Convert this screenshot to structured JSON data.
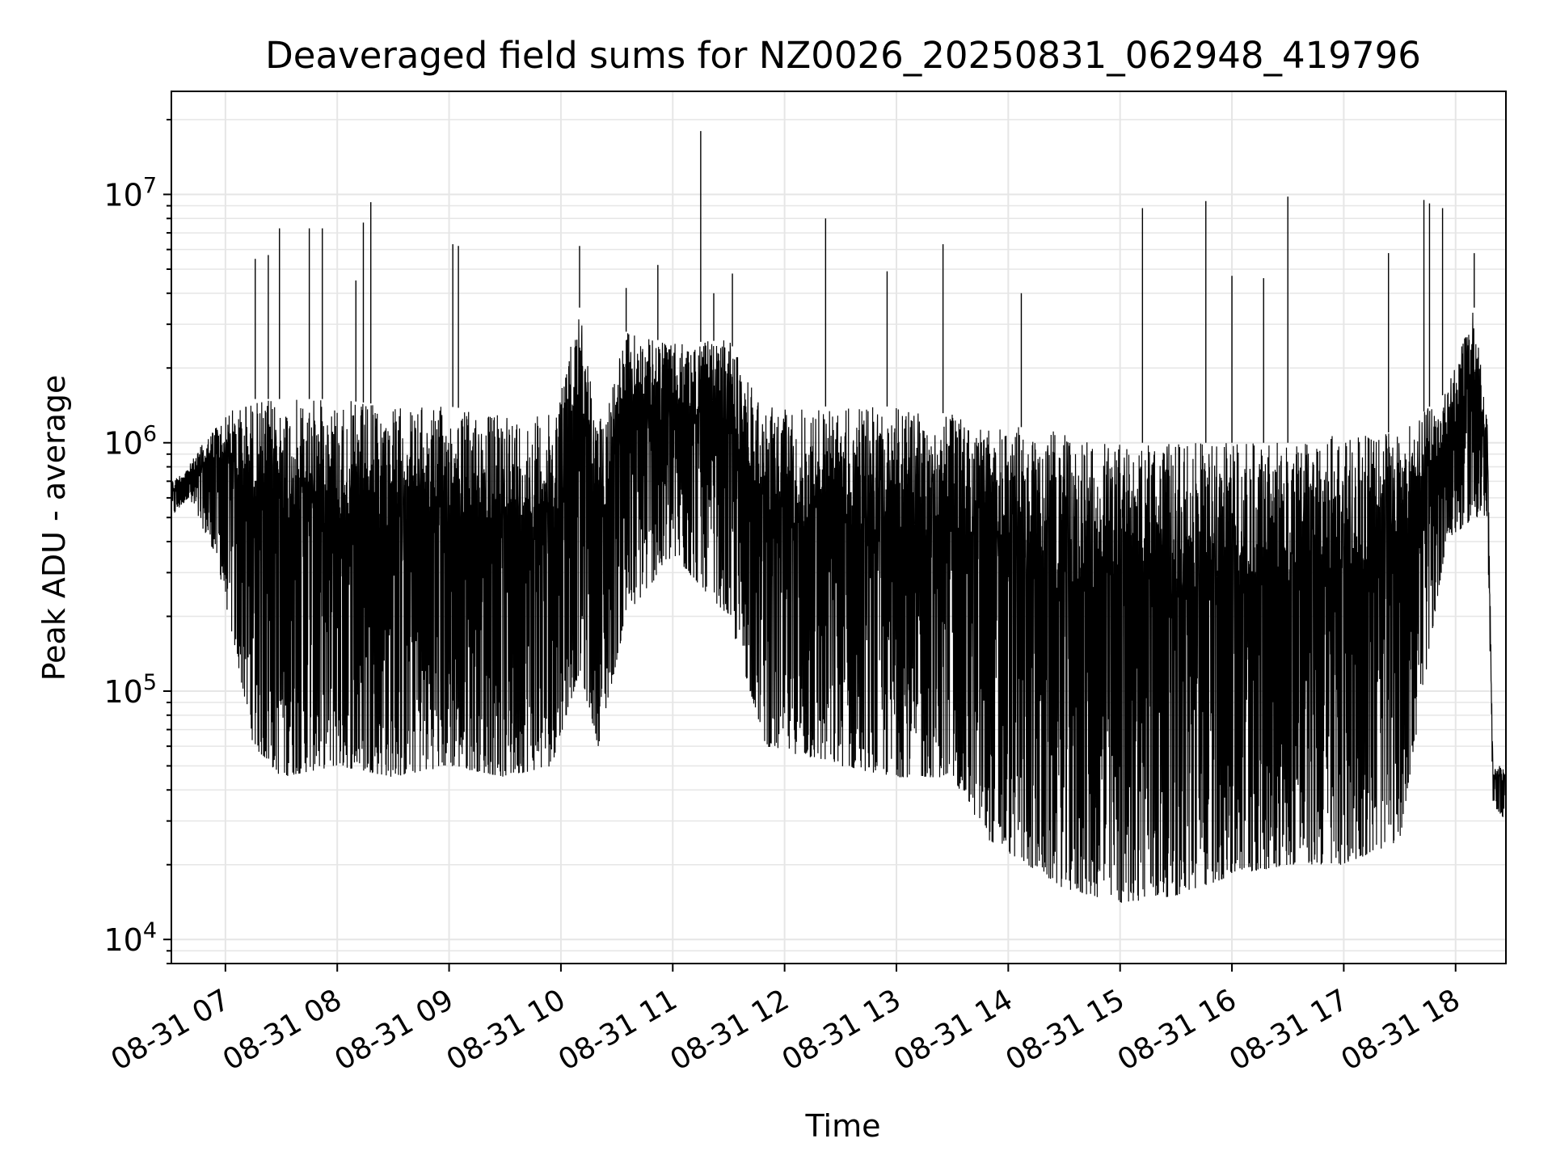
{
  "chart_data": {
    "type": "line",
    "title": "Deaveraged field sums for NZ0026_20250831_062948_419796",
    "xlabel": "Time",
    "ylabel": "Peak ADU - average",
    "yscale": "log",
    "ylim": [
      8000,
      26000000
    ],
    "xlim": [
      "08-31 06:31",
      "08-31 18:27"
    ],
    "grid": true,
    "legend": "none",
    "colors": {
      "line": "#000000",
      "grid": "#e6e6e6",
      "axes": "#000000",
      "background": "#ffffff"
    },
    "x_ticks": [
      {
        "t": "08-31 07:00",
        "label": "08-31 07"
      },
      {
        "t": "08-31 08:00",
        "label": "08-31 08"
      },
      {
        "t": "08-31 09:00",
        "label": "08-31 09"
      },
      {
        "t": "08-31 10:00",
        "label": "08-31 10"
      },
      {
        "t": "08-31 11:00",
        "label": "08-31 11"
      },
      {
        "t": "08-31 12:00",
        "label": "08-31 12"
      },
      {
        "t": "08-31 13:00",
        "label": "08-31 13"
      },
      {
        "t": "08-31 14:00",
        "label": "08-31 14"
      },
      {
        "t": "08-31 15:00",
        "label": "08-31 15"
      },
      {
        "t": "08-31 16:00",
        "label": "08-31 16"
      },
      {
        "t": "08-31 17:00",
        "label": "08-31 17"
      },
      {
        "t": "08-31 18:00",
        "label": "08-31 18"
      }
    ],
    "y_ticks": [
      {
        "value": 10000,
        "base": "10",
        "exp": "4"
      },
      {
        "value": 100000,
        "base": "10",
        "exp": "5"
      },
      {
        "value": 1000000,
        "base": "10",
        "exp": "6"
      },
      {
        "value": 10000000,
        "base": "10",
        "exp": "7"
      }
    ],
    "series": [
      {
        "color": "#000000",
        "envelope": [
          {
            "t": "08-31 06:31",
            "low": 500000,
            "high": 700000
          },
          {
            "t": "08-31 06:40",
            "low": 600000,
            "high": 800000
          },
          {
            "t": "08-31 06:48",
            "low": 450000,
            "high": 1000000
          },
          {
            "t": "08-31 06:55",
            "low": 350000,
            "high": 1200000
          },
          {
            "t": "08-31 07:05",
            "low": 150000,
            "high": 1400000
          },
          {
            "t": "08-31 07:15",
            "low": 60000,
            "high": 1500000
          },
          {
            "t": "08-31 07:30",
            "low": 45000,
            "high": 1500000
          },
          {
            "t": "08-31 08:00",
            "low": 50000,
            "high": 1500000
          },
          {
            "t": "08-31 08:30",
            "low": 45000,
            "high": 1400000
          },
          {
            "t": "08-31 09:00",
            "low": 50000,
            "high": 1400000
          },
          {
            "t": "08-31 09:30",
            "low": 45000,
            "high": 1300000
          },
          {
            "t": "08-31 09:55",
            "low": 50000,
            "high": 1300000
          },
          {
            "t": "08-31 10:10",
            "low": 120000,
            "high": 3500000
          },
          {
            "t": "08-31 10:20",
            "low": 60000,
            "high": 1200000
          },
          {
            "t": "08-31 10:35",
            "low": 200000,
            "high": 2800000
          },
          {
            "t": "08-31 11:00",
            "low": 350000,
            "high": 2500000
          },
          {
            "t": "08-31 11:30",
            "low": 200000,
            "high": 2600000
          },
          {
            "t": "08-31 11:50",
            "low": 60000,
            "high": 1400000
          },
          {
            "t": "08-31 12:30",
            "low": 50000,
            "high": 1400000
          },
          {
            "t": "08-31 13:00",
            "low": 45000,
            "high": 1400000
          },
          {
            "t": "08-31 13:30",
            "low": 45000,
            "high": 1300000
          },
          {
            "t": "08-31 13:50",
            "low": 25000,
            "high": 1200000
          },
          {
            "t": "08-31 14:30",
            "low": 16000,
            "high": 1100000
          },
          {
            "t": "08-31 15:00",
            "low": 14000,
            "high": 1000000
          },
          {
            "t": "08-31 15:30",
            "low": 15000,
            "high": 1000000
          },
          {
            "t": "08-31 16:00",
            "low": 18000,
            "high": 1000000
          },
          {
            "t": "08-31 16:30",
            "low": 20000,
            "high": 1000000
          },
          {
            "t": "08-31 17:00",
            "low": 20000,
            "high": 1100000
          },
          {
            "t": "08-31 17:30",
            "low": 25000,
            "high": 1100000
          },
          {
            "t": "08-31 17:55",
            "low": 400000,
            "high": 1600000
          },
          {
            "t": "08-31 18:10",
            "low": 500000,
            "high": 3500000
          },
          {
            "t": "08-31 18:17",
            "low": 500000,
            "high": 1200000
          },
          {
            "t": "08-31 18:20",
            "low": 35000,
            "high": 50000
          },
          {
            "t": "08-31 18:27",
            "low": 30000,
            "high": 50000
          }
        ],
        "spikes": [
          {
            "t": "08-31 07:16",
            "value": 5500000
          },
          {
            "t": "08-31 07:23",
            "value": 5700000
          },
          {
            "t": "08-31 07:29",
            "value": 7300000
          },
          {
            "t": "08-31 07:45",
            "value": 7300000
          },
          {
            "t": "08-31 07:52",
            "value": 7300000
          },
          {
            "t": "08-31 08:10",
            "value": 4500000
          },
          {
            "t": "08-31 08:14",
            "value": 7700000
          },
          {
            "t": "08-31 08:18",
            "value": 9300000
          },
          {
            "t": "08-31 09:02",
            "value": 6300000
          },
          {
            "t": "08-31 09:05",
            "value": 6200000
          },
          {
            "t": "08-31 10:10",
            "value": 6200000
          },
          {
            "t": "08-31 10:35",
            "value": 4200000
          },
          {
            "t": "08-31 10:52",
            "value": 5200000
          },
          {
            "t": "08-31 11:15",
            "value": 18000000
          },
          {
            "t": "08-31 11:22",
            "value": 4000000
          },
          {
            "t": "08-31 11:32",
            "value": 4800000
          },
          {
            "t": "08-31 12:22",
            "value": 8000000
          },
          {
            "t": "08-31 12:55",
            "value": 4900000
          },
          {
            "t": "08-31 13:25",
            "value": 6300000
          },
          {
            "t": "08-31 14:07",
            "value": 4000000
          },
          {
            "t": "08-31 15:12",
            "value": 8800000
          },
          {
            "t": "08-31 15:46",
            "value": 9400000
          },
          {
            "t": "08-31 16:00",
            "value": 4700000
          },
          {
            "t": "08-31 16:17",
            "value": 4600000
          },
          {
            "t": "08-31 16:30",
            "value": 9800000
          },
          {
            "t": "08-31 17:24",
            "value": 5800000
          },
          {
            "t": "08-31 17:43",
            "value": 9500000
          },
          {
            "t": "08-31 17:46",
            "value": 9200000
          },
          {
            "t": "08-31 17:53",
            "value": 8800000
          },
          {
            "t": "08-31 18:10",
            "value": 5800000
          }
        ]
      }
    ]
  }
}
